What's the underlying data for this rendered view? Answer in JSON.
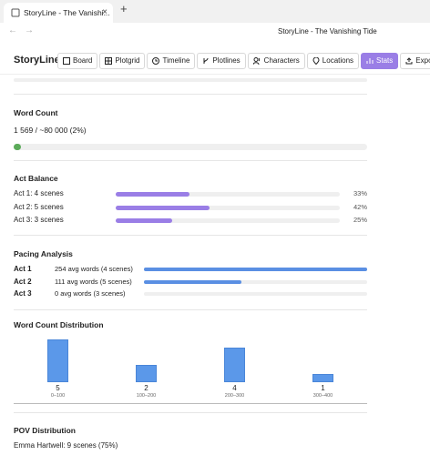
{
  "browser": {
    "tab_title": "StoryLine - The Vanishi...",
    "page_title": "StoryLine - The Vanishing Tide"
  },
  "app": {
    "name": "StoryLine",
    "nav": [
      "Board",
      "Plotgrid",
      "Timeline",
      "Plotlines",
      "Characters",
      "Locations",
      "Stats",
      "Export"
    ]
  },
  "word_count": {
    "title": "Word Count",
    "summary": "1 569 / ~80 000 (2%)",
    "percent": 2
  },
  "act_balance": {
    "title": "Act Balance",
    "rows": [
      {
        "label": "Act 1: 4 scenes",
        "percent": 33,
        "percent_label": "33%"
      },
      {
        "label": "Act 2: 5 scenes",
        "percent": 42,
        "percent_label": "42%"
      },
      {
        "label": "Act 3: 3 scenes",
        "percent": 25,
        "percent_label": "25%"
      }
    ]
  },
  "pacing": {
    "title": "Pacing Analysis",
    "rows": [
      {
        "act": "Act 1",
        "label": "254 avg words (4 scenes)",
        "avg": 254
      },
      {
        "act": "Act 2",
        "label": "111 avg words (5 scenes)",
        "avg": 111
      },
      {
        "act": "Act 3",
        "label": "0 avg words (3 scenes)",
        "avg": 0
      }
    ]
  },
  "distribution": {
    "title": "Word Count Distribution",
    "bins": [
      {
        "count": 5,
        "range": "0–100"
      },
      {
        "count": 2,
        "range": "100–200"
      },
      {
        "count": 4,
        "range": "200–300"
      },
      {
        "count": 1,
        "range": "300–400"
      }
    ]
  },
  "pov": {
    "title": "POV Distribution",
    "rows": [
      "Emma Hartwell: 9 scenes (75%)"
    ]
  }
}
